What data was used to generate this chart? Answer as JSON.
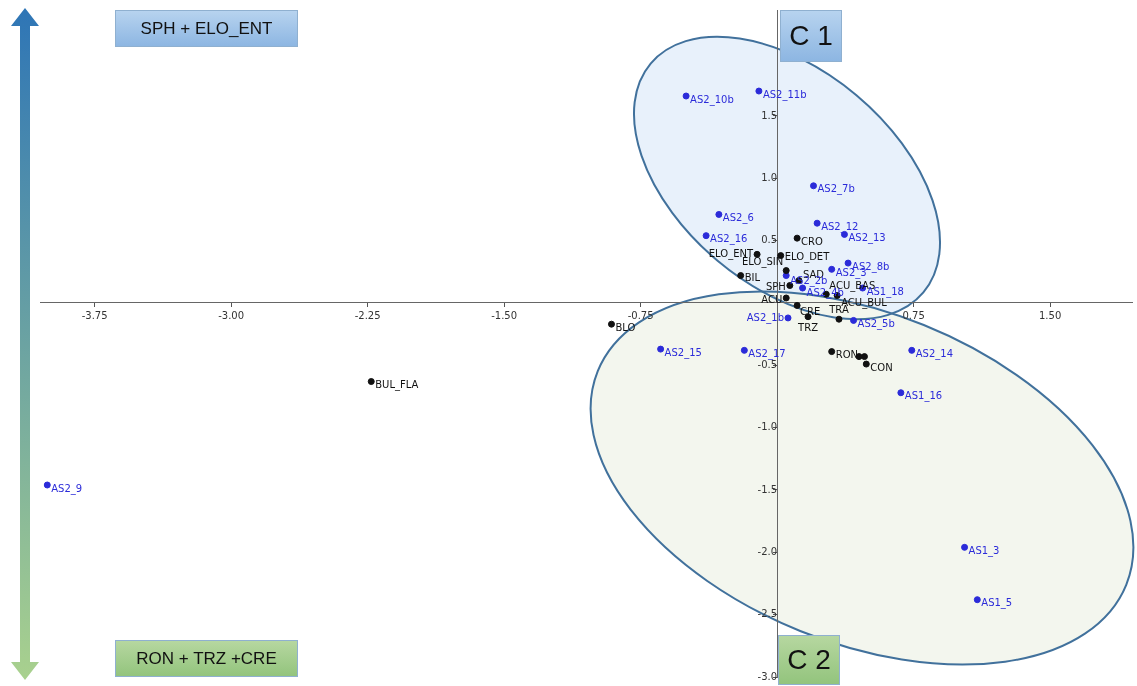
{
  "chart_data": {
    "type": "scatter",
    "grid": false,
    "legend": false,
    "marker": "circle",
    "xlim": [
      -4.05,
      1.95
    ],
    "ylim": [
      -3.0,
      2.35
    ],
    "xticks": [
      -3.75,
      {
        "value": -3,
        "label": "-3.00"
      },
      -2.25,
      {
        "value": -1.5,
        "label": "-1.50"
      },
      -0.75,
      0.75,
      {
        "value": 1.5,
        "label": "1.50"
      }
    ],
    "yticks": [
      {
        "value": -3,
        "label": "-3.0"
      },
      -2.5,
      {
        "value": -2,
        "label": "-2.0"
      },
      -1.5,
      {
        "value": -1,
        "label": "-1.0"
      },
      -0.5,
      0.5,
      {
        "value": 1,
        "label": "1.0"
      },
      1.5
    ],
    "annotations": [
      "SPH + ELO_ENT",
      "RON + TRZ +CRE",
      "C 1",
      "C 2"
    ],
    "series": [
      {
        "color": "#111111",
        "x": [
          0.11,
          -0.11,
          0.02,
          0.05,
          -0.2,
          0.12,
          0.07,
          0.27,
          0.33,
          0.05,
          0.11,
          0.17,
          0.34,
          -0.91,
          0.3,
          0.45,
          0.48,
          0.49,
          -2.23
        ],
        "values": [
          0.52,
          0.39,
          0.38,
          0.26,
          0.22,
          0.18,
          0.14,
          0.07,
          0.06,
          0.04,
          -0.02,
          -0.11,
          -0.13,
          -0.17,
          -0.39,
          -0.43,
          -0.43,
          -0.49,
          -0.63
        ],
        "value_labels": [
          "CRO",
          "ELO_ENT",
          "ELO_DET",
          "ELO_SIN",
          "BIL",
          "SAD",
          "SPH",
          "ACU_BAS",
          "ACU_BUL",
          "ACU",
          "CRE",
          "TRZ",
          "TRA",
          "BLO",
          "RON",
          null,
          null,
          "CON",
          "BUL_FLA"
        ]
      },
      {
        "color": "#2b2bd9",
        "x": [
          -0.5,
          -0.1,
          0.2,
          -0.32,
          0.22,
          0.37,
          -0.39,
          0.39,
          0.3,
          0.05,
          0.14,
          0.47,
          0.06,
          0.42,
          -0.64,
          -0.18,
          0.74,
          0.68,
          -4.01,
          1.03,
          1.1
        ],
        "values": [
          1.66,
          1.7,
          0.94,
          0.71,
          0.64,
          0.55,
          0.54,
          0.32,
          0.27,
          0.22,
          0.12,
          0.12,
          -0.12,
          -0.14,
          -0.37,
          -0.38,
          -0.38,
          -0.72,
          -1.46,
          -1.96,
          -2.38
        ],
        "value_labels": [
          "AS2_10b",
          "AS2_11b",
          "AS2_7b",
          "AS2_6",
          "AS2_12",
          "AS2_13",
          "AS2_16",
          "AS2_8b",
          "AS2_3",
          "AS2_2b",
          "AS2_4b",
          "AS1_18",
          "AS2_1b",
          "AS2_5b",
          "AS2_15",
          "AS2_17",
          "AS2_14",
          "AS1_16",
          "AS2_9",
          "AS1_3",
          "AS1_5"
        ]
      }
    ]
  }
}
